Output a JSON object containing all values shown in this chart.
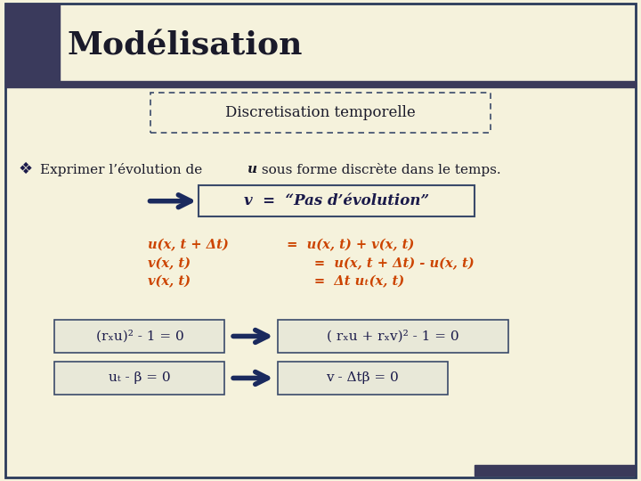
{
  "bg_color": "#F5F2DC",
  "border_color": "#2a3a5a",
  "title": "Modélisation",
  "title_color": "#1a1a2a",
  "title_bg": "#3a3a5c",
  "subtitle": "Discretisation temporelle",
  "subtitle_color": "#1a1a2a",
  "bullet_text_pre": "Exprimer l’évolution de ",
  "bullet_u": "u",
  "bullet_text_post": " sous forme discrète dans le temps.",
  "v_box_text": "v  =  “Pas d’évolution”",
  "eq1_left": "u(x, t + Δt)",
  "eq1_eq": " =  ",
  "eq1_right": "u(x, t) + v(x, t)",
  "eq2_left": "v(x, t)",
  "eq2_eq": "       =  ",
  "eq2_right": "u(x, t + Δt) - u(x, t)",
  "eq3_left": "v(x, t)",
  "eq3_eq": "       =  ",
  "eq3_right": "Δt uₜ(x, t)",
  "eq_color": "#cc4400",
  "box1_left": "(rₓu)² - 1 = 0",
  "box2_left": "uₜ - β = 0",
  "box1_right": "( rₓu + rₓv)² - 1 = 0",
  "box2_right": "v - Δtβ = 0",
  "box_edge_color": "#3a4a6a",
  "box_fill_color": "#E8E8D8",
  "arrow_color": "#1a2a5e",
  "dark_color": "#1a1a4a",
  "line_color": "#3a3a5a",
  "bottom_bar_color": "#3a3a5a"
}
